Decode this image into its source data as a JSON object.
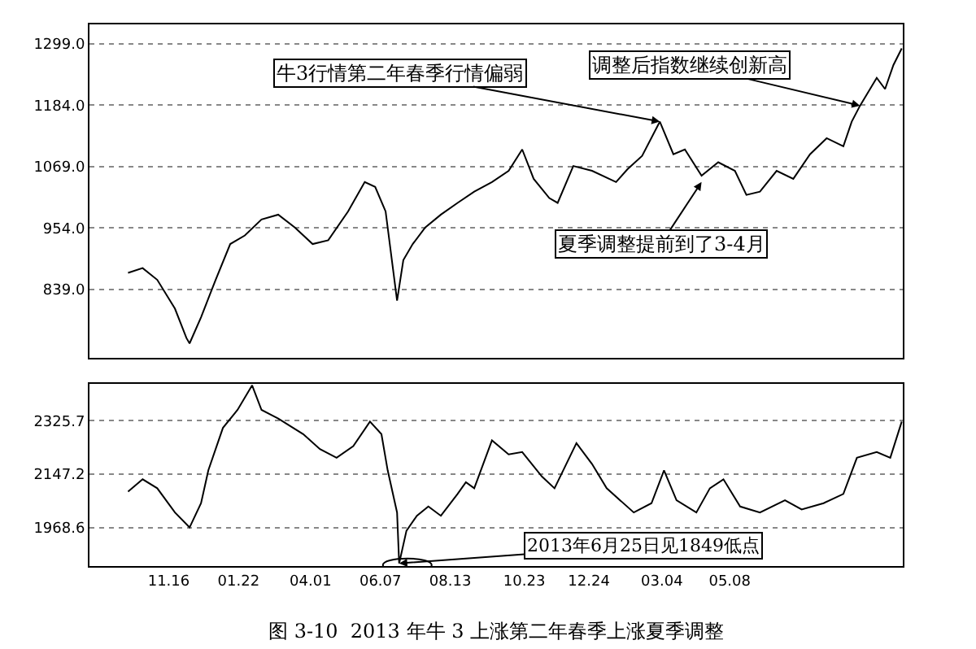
{
  "chart_data": [
    {
      "type": "line",
      "xlim": [
        "2012-09-01",
        "2014-10-21"
      ],
      "ylim": [
        711,
        1335
      ],
      "yticks": [
        {
          "value": 839,
          "label": "839.0"
        },
        {
          "value": 954,
          "label": "954.0"
        },
        {
          "value": 1069,
          "label": "1069.0"
        },
        {
          "value": 1184,
          "label": "1184.0"
        },
        {
          "value": 1299,
          "label": "1299.0"
        }
      ],
      "grid": "y",
      "tick_labels": "y",
      "series": [
        {
          "color": "#000000",
          "x": [
            "2012-10-08",
            "2012-10-22",
            "2012-11-05",
            "2012-11-22",
            "2012-12-03",
            "2012-12-06",
            "2012-12-17",
            "2012-12-31",
            "2013-01-14",
            "2013-01-28",
            "2013-02-13",
            "2013-03-01",
            "2013-03-17",
            "2013-04-03",
            "2013-04-18",
            "2013-05-07",
            "2013-05-23",
            "2013-06-02",
            "2013-06-12",
            "2013-06-23",
            "2013-06-29",
            "2013-07-08",
            "2013-07-20",
            "2013-08-04",
            "2013-08-20",
            "2013-09-05",
            "2013-09-22",
            "2013-10-08",
            "2013-10-21",
            "2013-11-01",
            "2013-11-16",
            "2013-11-24",
            "2013-12-09",
            "2013-12-27",
            "2014-01-19",
            "2014-01-30",
            "2014-02-13",
            "2014-03-02",
            "2014-03-15",
            "2014-03-26",
            "2014-04-11",
            "2014-04-27",
            "2014-05-13",
            "2014-05-24",
            "2014-06-06",
            "2014-06-22",
            "2014-07-08",
            "2014-07-24",
            "2014-08-09",
            "2014-08-25",
            "2014-09-02",
            "2014-09-10",
            "2014-09-26",
            "2014-10-04",
            "2014-10-12",
            "2014-10-20"
          ],
          "values": [
            870,
            879,
            857,
            803,
            748,
            738,
            787,
            857,
            924,
            940,
            970,
            979,
            955,
            924,
            931,
            985,
            1040,
            1031,
            985,
            818,
            894,
            924,
            955,
            979,
            1001,
            1022,
            1040,
            1061,
            1101,
            1046,
            1010,
            1001,
            1070,
            1061,
            1040,
            1064,
            1089,
            1153,
            1092,
            1101,
            1052,
            1077,
            1061,
            1016,
            1022,
            1061,
            1046,
            1092,
            1122,
            1107,
            1153,
            1183,
            1235,
            1214,
            1259,
            1290
          ]
        }
      ],
      "annotations": [
        {
          "text": "牛3行情第二年春季行情偏弱",
          "x": "2014-03-02",
          "y": 1153
        },
        {
          "text": "调整后指数继续创新高",
          "x": "2014-09-10",
          "y": 1183
        },
        {
          "text": "夏季调整提前到了3-4月",
          "x": "2014-04-11",
          "y": 1040
        }
      ]
    },
    {
      "type": "line",
      "xlim": [
        "2012-09-01",
        "2014-10-21"
      ],
      "ylim": [
        1840,
        2449
      ],
      "yticks": [
        {
          "value": 1968.6,
          "label": "1968.6"
        },
        {
          "value": 2147.2,
          "label": "2147.2"
        },
        {
          "value": 2325.7,
          "label": "2325.7"
        }
      ],
      "grid": "y",
      "xticks": [
        {
          "value": "2012-11-16",
          "label": "11.16"
        },
        {
          "value": "2013-01-22",
          "label": "01.22"
        },
        {
          "value": "2013-04-01",
          "label": "04.01"
        },
        {
          "value": "2013-06-07",
          "label": "06.07"
        },
        {
          "value": "2013-08-13",
          "label": "08.13"
        },
        {
          "value": "2013-10-23",
          "label": "10.23"
        },
        {
          "value": "2013-12-24",
          "label": "12.24"
        },
        {
          "value": "2014-03-04",
          "label": "03.04"
        },
        {
          "value": "2014-05-08",
          "label": "05.08"
        }
      ],
      "series": [
        {
          "color": "#000000",
          "x": [
            "2012-10-08",
            "2012-10-22",
            "2012-11-05",
            "2012-11-22",
            "2012-12-06",
            "2012-12-17",
            "2012-12-24",
            "2013-01-07",
            "2013-01-21",
            "2013-02-04",
            "2013-02-13",
            "2013-03-01",
            "2013-03-25",
            "2013-04-10",
            "2013-04-26",
            "2013-05-12",
            "2013-05-28",
            "2013-06-08",
            "2013-06-14",
            "2013-06-23",
            "2013-06-25",
            "2013-07-02",
            "2013-07-12",
            "2013-07-23",
            "2013-08-04",
            "2013-08-20",
            "2013-08-28",
            "2013-09-05",
            "2013-09-22",
            "2013-10-08",
            "2013-10-21",
            "2013-11-09",
            "2013-11-21",
            "2013-12-12",
            "2013-12-27",
            "2014-01-10",
            "2014-02-05",
            "2014-02-22",
            "2014-03-06",
            "2014-03-18",
            "2014-04-06",
            "2014-04-19",
            "2014-05-02",
            "2014-05-18",
            "2014-06-06",
            "2014-06-30",
            "2014-07-16",
            "2014-08-06",
            "2014-08-25",
            "2014-09-07",
            "2014-09-26",
            "2014-10-09",
            "2014-10-20"
          ],
          "values": [
            2089,
            2130,
            2100,
            2019,
            1969,
            2050,
            2160,
            2302,
            2362,
            2444,
            2362,
            2333,
            2281,
            2231,
            2202,
            2241,
            2323,
            2281,
            2160,
            2019,
            1849,
            1958,
            2008,
            2039,
            2008,
            2081,
            2120,
            2100,
            2260,
            2213,
            2221,
            2139,
            2100,
            2251,
            2181,
            2100,
            2019,
            2050,
            2160,
            2060,
            2019,
            2100,
            2130,
            2039,
            2019,
            2060,
            2029,
            2050,
            2081,
            2202,
            2221,
            2202,
            2323
          ]
        }
      ],
      "annotations": [
        {
          "text": "2013年6月25日见1849低点",
          "x": "2013-06-25",
          "y": 1849
        },
        "图 3-10  2013 年牛 3 上涨第二年春季上涨夏季调整"
      ]
    }
  ]
}
